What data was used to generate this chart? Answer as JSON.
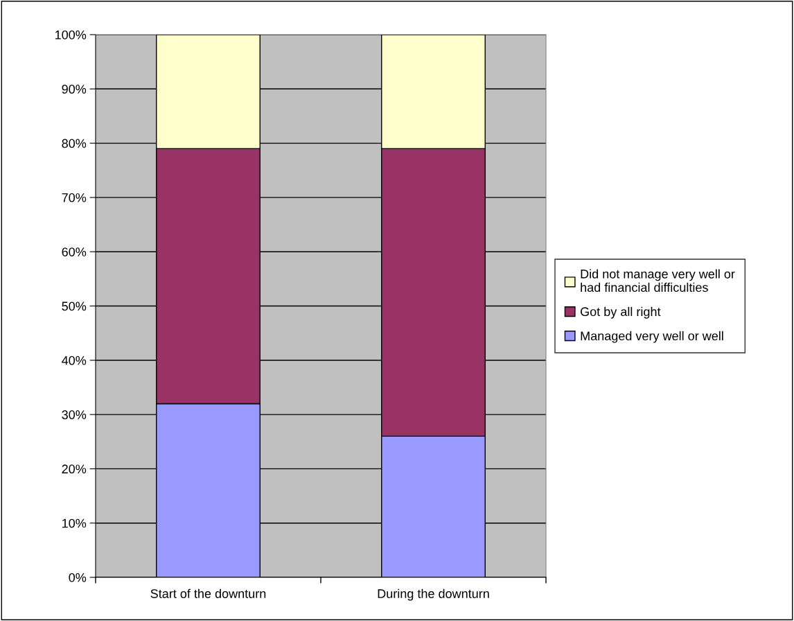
{
  "chart_data": {
    "type": "bar",
    "stacked": true,
    "categories": [
      "Start of the downturn",
      "During the downturn"
    ],
    "series": [
      {
        "name": "Managed very well or well",
        "color": "#9999ff",
        "values": [
          32,
          26
        ]
      },
      {
        "name": "Got by all right",
        "color": "#993366",
        "values": [
          47,
          53
        ]
      },
      {
        "name": "Did not manage very well or\nhad financial difficulties",
        "color": "#ffffcc",
        "values": [
          21,
          21
        ]
      }
    ],
    "ylim": [
      0,
      100
    ],
    "yticks": [
      {
        "value": 0,
        "label": "0%"
      },
      {
        "value": 10,
        "label": "10%"
      },
      {
        "value": 20,
        "label": "20%"
      },
      {
        "value": 30,
        "label": "30%"
      },
      {
        "value": 40,
        "label": "40%"
      },
      {
        "value": 50,
        "label": "50%"
      },
      {
        "value": 60,
        "label": "60%"
      },
      {
        "value": 70,
        "label": "70%"
      },
      {
        "value": 80,
        "label": "80%"
      },
      {
        "value": 90,
        "label": "90%"
      },
      {
        "value": 100,
        "label": "100%"
      }
    ],
    "grid": "y",
    "legend": "right"
  }
}
